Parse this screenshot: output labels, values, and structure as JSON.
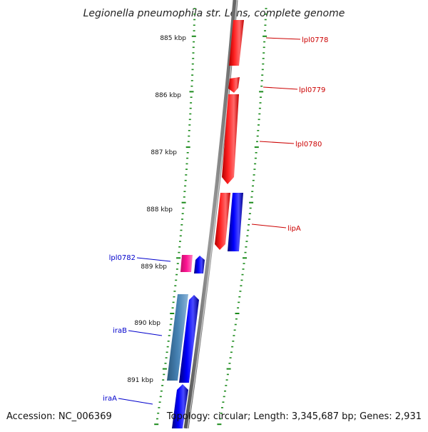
{
  "title": "Legionella pneumophila str. Lens, complete genome",
  "footer": {
    "accession": "Accession: NC_006369",
    "topology": "Topology: circular; Length: 3,345,687 bp; Genes: 2,931"
  },
  "colors": {
    "background": "#ffffff",
    "backbone": "#7a7a7a",
    "tick": "#1a8a1a",
    "forward_gene": "#ff0000",
    "reverse_gene": "#0000ff",
    "pink_gene": "#ff1493",
    "steel_gene": "#4682b4",
    "label_red": "#cc0000",
    "label_blue": "#0000cc"
  },
  "ticks": [
    {
      "kbp": 885,
      "label": "885 kbp"
    },
    {
      "kbp": 886,
      "label": "886 kbp"
    },
    {
      "kbp": 887,
      "label": "887 kbp"
    },
    {
      "kbp": 888,
      "label": "888 kbp"
    },
    {
      "kbp": 889,
      "label": "889 kbp"
    },
    {
      "kbp": 890,
      "label": "890 kbp"
    },
    {
      "kbp": 891,
      "label": "891 kbp"
    }
  ],
  "genes": [
    {
      "name": "lpl0778",
      "label": "lpl0778",
      "strand": "outer",
      "color": "forward_gene"
    },
    {
      "name": "lpl0779",
      "label": "lpl0779",
      "strand": "outer",
      "color": "forward_gene"
    },
    {
      "name": "lpl0780",
      "label": "lpl0780",
      "strand": "outer",
      "color": "forward_gene"
    },
    {
      "name": "lipA-red",
      "label": "",
      "strand": "outer",
      "color": "forward_gene"
    },
    {
      "name": "lipA",
      "label": "lipA",
      "strand": "outer",
      "color": "reverse_gene"
    },
    {
      "name": "lpl0782",
      "label": "lpl0782",
      "strand": "inner",
      "color": "pink_gene"
    },
    {
      "name": "lpl0782-blue",
      "label": "",
      "strand": "inner",
      "color": "reverse_gene"
    },
    {
      "name": "iraB-steel",
      "label": "",
      "strand": "inner",
      "color": "steel_gene"
    },
    {
      "name": "iraB",
      "label": "iraB",
      "strand": "inner",
      "color": "reverse_gene"
    },
    {
      "name": "iraA",
      "label": "iraA",
      "strand": "inner",
      "color": "reverse_gene"
    }
  ]
}
